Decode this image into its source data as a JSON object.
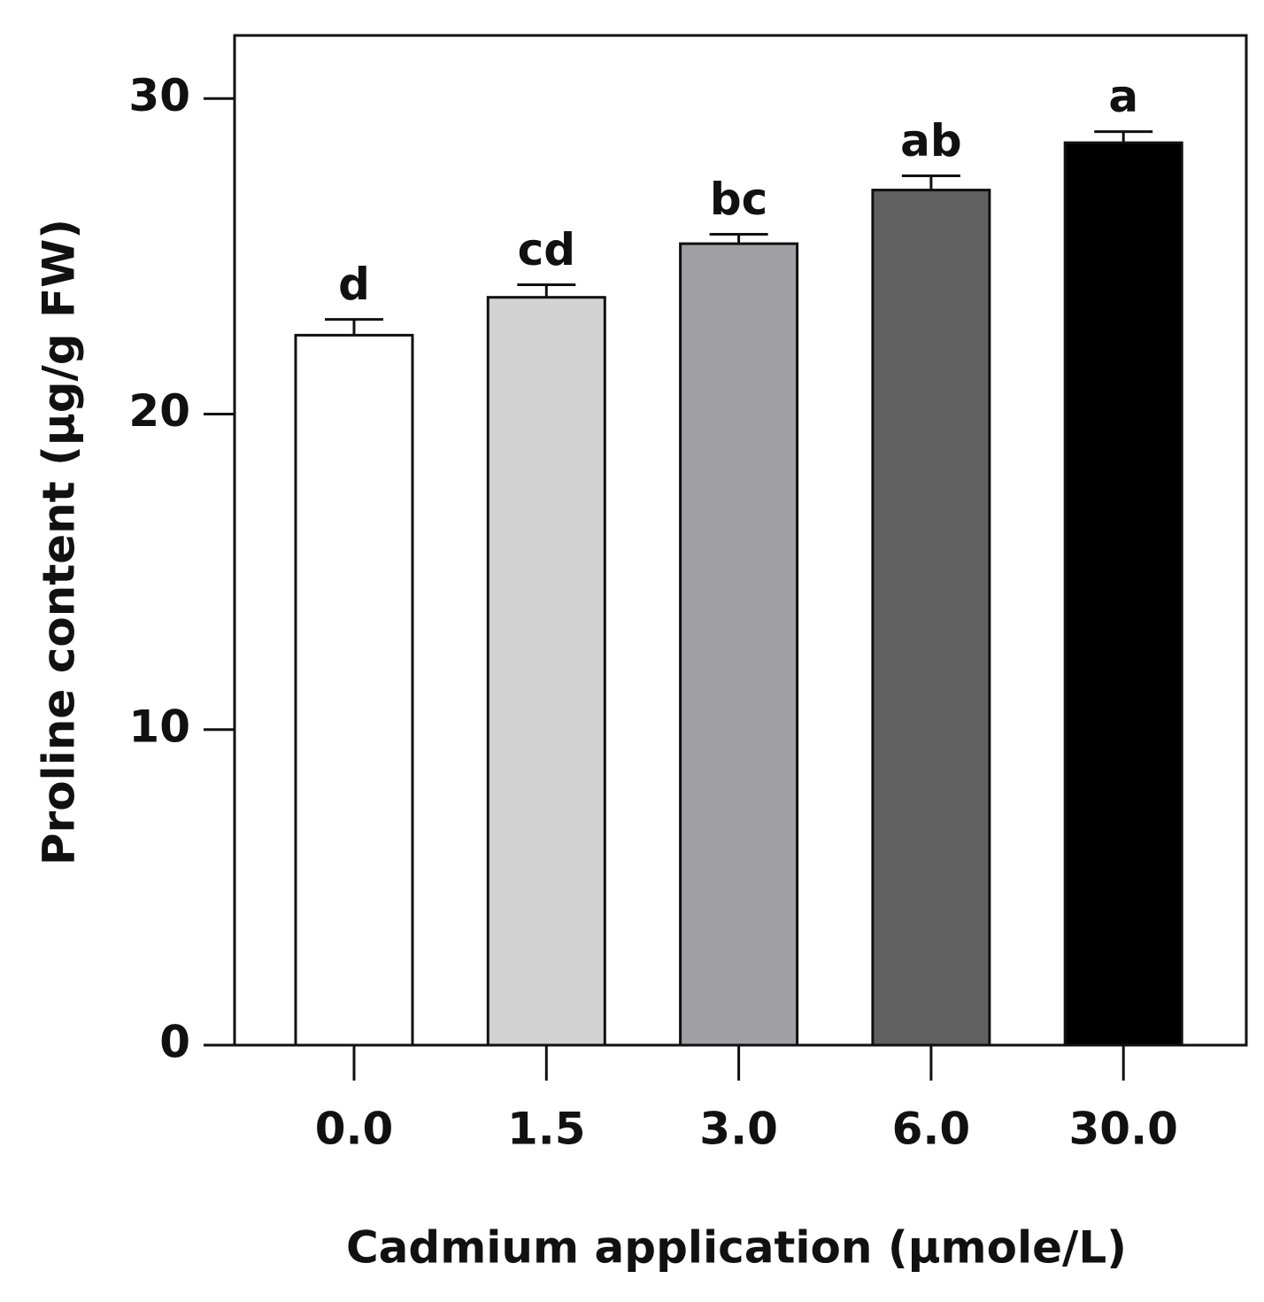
{
  "chart_data": {
    "type": "bar",
    "xlabel": "Cadmium application (µmole/L)",
    "ylabel": "Proline content  (µg/g FW)",
    "categories": [
      "0.0",
      "1.5",
      "3.0",
      "6.0",
      "30.0"
    ],
    "values": [
      22.5,
      23.7,
      25.4,
      27.1,
      28.6
    ],
    "errors": [
      0.5,
      0.4,
      0.3,
      0.45,
      0.35
    ],
    "annotations": [
      "d",
      "cd",
      "bc",
      "ab",
      "a"
    ],
    "colors": [
      "#ffffff",
      "#d3d3d3",
      "#a0a0a4",
      "#606060",
      "#000000"
    ],
    "ylim": [
      0,
      32
    ],
    "yticks": [
      0,
      10,
      20,
      30
    ],
    "grid": false
  }
}
